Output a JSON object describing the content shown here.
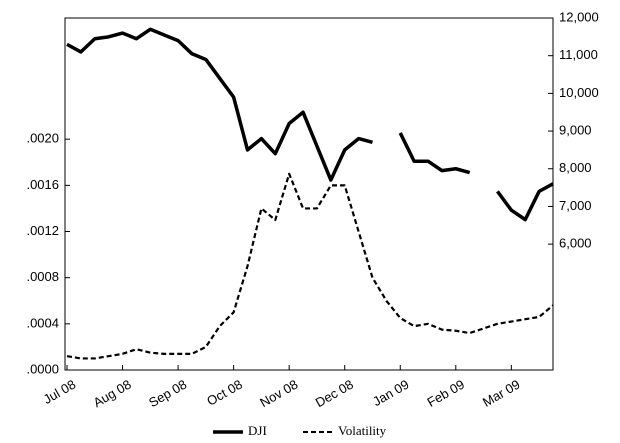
{
  "chart_data": {
    "type": "line",
    "categories": [
      "Jul 08",
      null,
      null,
      null,
      "Aug 08",
      null,
      null,
      null,
      "Sep 08",
      null,
      null,
      null,
      "Oct 08",
      null,
      null,
      null,
      "Nov 08",
      null,
      null,
      null,
      "Dec 08",
      null,
      null,
      null,
      "Jan 09",
      null,
      null,
      null,
      "Feb 09",
      null,
      null,
      null,
      "Mar 09",
      null,
      null,
      null
    ],
    "series": [
      {
        "name": "DJI",
        "color": "#000000",
        "axis": "y2",
        "dash": false,
        "values": [
          11300,
          11100,
          11450,
          11500,
          11600,
          11450,
          11700,
          11550,
          11400,
          11050,
          10900,
          10400,
          9900,
          8500,
          8800,
          8400,
          9200,
          9500,
          8600,
          7700,
          8500,
          8800,
          8700,
          null,
          8950,
          8200,
          8200,
          7950,
          8000,
          7900,
          null,
          7400,
          6900,
          6650,
          7400,
          7600
        ]
      },
      {
        "name": "Volatility",
        "color": "#000000",
        "dash": true,
        "values": [
          0.00012,
          0.0001,
          0.0001,
          0.00012,
          0.00014,
          0.00018,
          0.00015,
          0.00014,
          0.00014,
          0.00014,
          0.0002,
          0.00038,
          0.0005,
          0.0009,
          0.0014,
          0.0013,
          0.0017,
          0.0014,
          0.0014,
          0.0016,
          0.0016,
          0.0012,
          0.0008,
          0.0006,
          0.00045,
          0.00038,
          0.0004,
          0.00035,
          0.00034,
          0.00032,
          0.00036,
          0.0004,
          0.00042,
          0.00044,
          0.00046,
          0.00056
        ]
      }
    ],
    "ylim": [
      0,
      0.00305
    ],
    "yticks": [
      {
        "value": 0,
        "label": ".0000"
      },
      {
        "value": 0.0004,
        "label": ".0004"
      },
      {
        "value": 0.0008,
        "label": ".0008"
      },
      {
        "value": 0.0012,
        "label": ".0012"
      },
      {
        "value": 0.0016,
        "label": ".0016"
      },
      {
        "value": 0.002,
        "label": ".0020"
      }
    ],
    "y2lim": [
      2660,
      12000
    ],
    "y2ticks": [
      {
        "value": 6000,
        "label": "6,000"
      },
      {
        "value": 7000,
        "label": "7,000"
      },
      {
        "value": 8000,
        "label": "8,000"
      },
      {
        "value": 9000,
        "label": "9,000"
      },
      {
        "value": 10000,
        "label": "10,000"
      },
      {
        "value": 11000,
        "label": "11,000"
      },
      {
        "value": 12000,
        "label": "12,000"
      }
    ],
    "grid": false,
    "legend": "bottom"
  }
}
